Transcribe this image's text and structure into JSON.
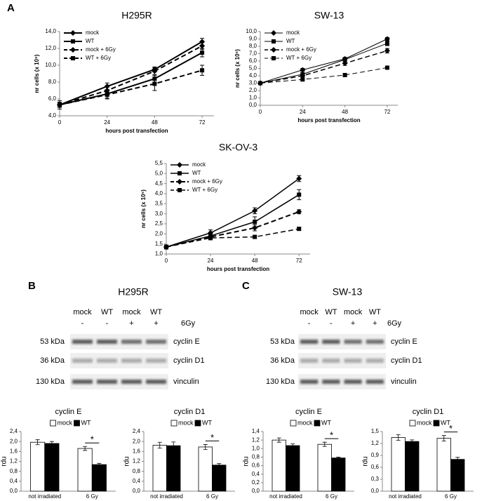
{
  "panel_labels": [
    "A",
    "B",
    "C"
  ],
  "chart_data": [
    {
      "type": "line",
      "title": "H295R",
      "xlabel": "hours post transfection",
      "ylabel": "nr cells (x 10⁵)",
      "x": [
        0,
        24,
        48,
        72
      ],
      "xlim": [
        0,
        78
      ],
      "xticks": [
        0,
        24,
        48,
        72
      ],
      "ylim": [
        4,
        14
      ],
      "yticks": [
        {
          "value": 4,
          "label": "4,0"
        },
        {
          "value": 6,
          "label": "6,0"
        },
        {
          "value": 8,
          "label": "8,0"
        },
        {
          "value": 10,
          "label": "10,0"
        },
        {
          "value": 12,
          "label": "12,0"
        },
        {
          "value": 14,
          "label": "14,0"
        }
      ],
      "series": [
        {
          "name": "mock",
          "color": "#000000",
          "marker": "diamond",
          "dash": false,
          "width": 2,
          "values": [
            5.3,
            7.5,
            9.5,
            12.8
          ],
          "errors": [
            0.3,
            0.4,
            0.3,
            0.4
          ]
        },
        {
          "name": "WT",
          "color": "#000000",
          "marker": "square",
          "dash": false,
          "width": 2,
          "values": [
            5.3,
            6.6,
            8.4,
            11.5
          ],
          "errors": [
            0.5,
            0.5,
            0.4,
            0.5
          ]
        },
        {
          "name": "mock + 6Gy",
          "color": "#000000",
          "marker": "diamond",
          "dash": true,
          "width": 2,
          "values": [
            5.3,
            7.0,
            9.3,
            12.3
          ],
          "errors": [
            0.3,
            0.4,
            0.4,
            0.4
          ]
        },
        {
          "name": "WT + 6Gy",
          "color": "#000000",
          "marker": "square",
          "dash": true,
          "width": 2,
          "values": [
            5.3,
            6.5,
            7.8,
            9.4
          ],
          "errors": [
            0.3,
            0.5,
            0.8,
            0.6
          ]
        }
      ]
    },
    {
      "type": "line",
      "title": "SW-13",
      "xlabel": "hours post transfection",
      "ylabel": "nr cells (x 10⁵)",
      "x": [
        0,
        24,
        48,
        72
      ],
      "xlim": [
        0,
        78
      ],
      "xticks": [
        0,
        24,
        48,
        72
      ],
      "ylim": [
        0,
        10
      ],
      "yticks": [
        {
          "value": 0,
          "label": "0,0"
        },
        {
          "value": 1,
          "label": "1,0"
        },
        {
          "value": 2,
          "label": "2,0"
        },
        {
          "value": 3,
          "label": "3,0"
        },
        {
          "value": 4,
          "label": "4,0"
        },
        {
          "value": 5,
          "label": "5,0"
        },
        {
          "value": 6,
          "label": "6,0"
        },
        {
          "value": 7,
          "label": "7,0"
        },
        {
          "value": 8,
          "label": "8,0"
        },
        {
          "value": 9,
          "label": "9,0"
        },
        {
          "value": 10,
          "label": "10,0"
        }
      ],
      "series": [
        {
          "name": "mock",
          "color": "#000000",
          "marker": "diamond",
          "dash": false,
          "width": 1,
          "values": [
            3.0,
            4.8,
            6.3,
            9.0
          ],
          "errors": [
            0.2,
            0.2,
            0.2,
            0.2
          ]
        },
        {
          "name": "WT",
          "color": "#000000",
          "marker": "square",
          "dash": false,
          "width": 1,
          "values": [
            3.0,
            4.2,
            6.2,
            8.4
          ],
          "errors": [
            0.2,
            0.2,
            0.2,
            0.3
          ]
        },
        {
          "name": "mock + 6Gy",
          "color": "#000000",
          "marker": "diamond",
          "dash": true,
          "width": 1.5,
          "values": [
            3.0,
            4.0,
            5.7,
            7.4
          ],
          "errors": [
            0.2,
            0.2,
            0.3,
            0.3
          ]
        },
        {
          "name": "WT + 6Gy",
          "color": "#000000",
          "marker": "square",
          "dash": true,
          "width": 1,
          "values": [
            3.0,
            3.5,
            4.1,
            5.1
          ],
          "errors": [
            0.2,
            0.1,
            0.2,
            0.1
          ]
        }
      ]
    },
    {
      "type": "line",
      "title": "SK-OV-3",
      "xlabel": "hours post transfection",
      "ylabel": "nr cells (x 10⁵)",
      "x": [
        0,
        24,
        48,
        72
      ],
      "xlim": [
        0,
        78
      ],
      "xticks": [
        0,
        24,
        48,
        72
      ],
      "ylim": [
        1,
        5.5
      ],
      "yticks": [
        {
          "value": 1,
          "label": "1,0"
        },
        {
          "value": 1.5,
          "label": "1,5"
        },
        {
          "value": 2,
          "label": "2,0"
        },
        {
          "value": 2.5,
          "label": "2,5"
        },
        {
          "value": 3,
          "label": "3,0"
        },
        {
          "value": 3.5,
          "label": "3,5"
        },
        {
          "value": 4,
          "label": "4,0"
        },
        {
          "value": 4.5,
          "label": "4,5"
        },
        {
          "value": 5,
          "label": "5,0"
        },
        {
          "value": 5.5,
          "label": "5,5"
        }
      ],
      "series": [
        {
          "name": "mock",
          "color": "#000000",
          "marker": "diamond",
          "dash": false,
          "width": 1.5,
          "values": [
            1.35,
            2.05,
            3.15,
            4.75
          ],
          "errors": [
            0.1,
            0.15,
            0.15,
            0.15
          ]
        },
        {
          "name": "WT",
          "color": "#000000",
          "marker": "square",
          "dash": false,
          "width": 1.5,
          "values": [
            1.35,
            1.9,
            2.6,
            3.95
          ],
          "errors": [
            0.1,
            0.15,
            0.25,
            0.25
          ]
        },
        {
          "name": "mock + 6Gy",
          "color": "#000000",
          "marker": "diamond",
          "dash": true,
          "width": 2,
          "values": [
            1.35,
            1.85,
            2.3,
            3.1
          ],
          "errors": [
            0.1,
            0.1,
            0.15,
            0.1
          ]
        },
        {
          "name": "WT + 6Gy",
          "color": "#000000",
          "marker": "square",
          "dash": true,
          "width": 1.5,
          "values": [
            1.35,
            1.8,
            1.85,
            2.25
          ],
          "errors": [
            0.1,
            0.1,
            0.08,
            0.08
          ]
        }
      ]
    },
    {
      "type": "bar",
      "title": "cyclin E",
      "ylabel": "rdu",
      "annotation": "*",
      "categories": [
        "not irradiated",
        "6 Gy"
      ],
      "ylim": [
        0,
        2.4
      ],
      "yticks": [
        {
          "value": 0,
          "label": "0,0"
        },
        {
          "value": 0.4,
          "label": "0,4"
        },
        {
          "value": 0.8,
          "label": "0,8"
        },
        {
          "value": 1.2,
          "label": "1,2"
        },
        {
          "value": 1.6,
          "label": "1,6"
        },
        {
          "value": 2.0,
          "label": "2,0"
        },
        {
          "value": 2.4,
          "label": "2,4"
        }
      ],
      "series": [
        {
          "name": "mock",
          "color": "#ffffff",
          "values": [
            1.97,
            1.72
          ],
          "errors": [
            0.1,
            0.08
          ]
        },
        {
          "name": "WT",
          "color": "#000000",
          "values": [
            1.92,
            1.07
          ],
          "errors": [
            0.08,
            0.05
          ]
        }
      ]
    },
    {
      "type": "bar",
      "title": "cyclin D1",
      "ylabel": "rdu",
      "annotation": "*",
      "categories": [
        "not irradiated",
        "6 Gy"
      ],
      "ylim": [
        0,
        2.4
      ],
      "yticks": [
        {
          "value": 0,
          "label": "0,0"
        },
        {
          "value": 0.4,
          "label": "0,4"
        },
        {
          "value": 0.8,
          "label": "0,8"
        },
        {
          "value": 1.2,
          "label": "1,2"
        },
        {
          "value": 1.6,
          "label": "1,6"
        },
        {
          "value": 2.0,
          "label": "2,0"
        },
        {
          "value": 2.4,
          "label": "2,4"
        }
      ],
      "series": [
        {
          "name": "mock",
          "color": "#ffffff",
          "values": [
            1.85,
            1.78
          ],
          "errors": [
            0.12,
            0.1
          ]
        },
        {
          "name": "WT",
          "color": "#000000",
          "values": [
            1.83,
            1.05
          ],
          "errors": [
            0.15,
            0.06
          ]
        }
      ]
    },
    {
      "type": "bar",
      "title": "cyclin E",
      "ylabel": "rdu",
      "annotation": "*",
      "categories": [
        "not irradiated",
        "6 Gy"
      ],
      "ylim": [
        0,
        1.4
      ],
      "yticks": [
        {
          "value": 0,
          "label": "0,0"
        },
        {
          "value": 0.2,
          "label": "0,2"
        },
        {
          "value": 0.4,
          "label": "0,4"
        },
        {
          "value": 0.6,
          "label": "0,6"
        },
        {
          "value": 0.8,
          "label": "0,8"
        },
        {
          "value": 1.0,
          "label": "1,0"
        },
        {
          "value": 1.2,
          "label": "1,2"
        },
        {
          "value": 1.4,
          "label": "1,4"
        }
      ],
      "series": [
        {
          "name": "mock",
          "color": "#ffffff",
          "values": [
            1.2,
            1.1
          ],
          "errors": [
            0.05,
            0.05
          ]
        },
        {
          "name": "WT",
          "color": "#000000",
          "values": [
            1.07,
            0.78
          ],
          "errors": [
            0.04,
            0.02
          ]
        }
      ]
    },
    {
      "type": "bar",
      "title": "cyclin D1",
      "ylabel": "rdu",
      "annotation": "*",
      "categories": [
        "not irradiated",
        "6 Gy"
      ],
      "ylim": [
        0,
        1.5
      ],
      "yticks": [
        {
          "value": 0,
          "label": "0,0"
        },
        {
          "value": 0.3,
          "label": "0,3"
        },
        {
          "value": 0.6,
          "label": "0,6"
        },
        {
          "value": 0.9,
          "label": "0,9"
        },
        {
          "value": 1.2,
          "label": "1,2"
        },
        {
          "value": 1.5,
          "label": "1,5"
        }
      ],
      "series": [
        {
          "name": "mock",
          "color": "#ffffff",
          "values": [
            1.35,
            1.33
          ],
          "errors": [
            0.07,
            0.07
          ]
        },
        {
          "name": "WT",
          "color": "#000000",
          "values": [
            1.25,
            0.8
          ],
          "errors": [
            0.04,
            0.05
          ]
        }
      ]
    }
  ],
  "blots": [
    {
      "title": "H295R",
      "treatment_label": "6Gy",
      "lanes": [
        "mock",
        "WT",
        "mock",
        "WT"
      ],
      "treatments": [
        "-",
        "-",
        "+",
        "+"
      ],
      "rows": [
        {
          "kda": "53 kDa",
          "protein": "cyclin E"
        },
        {
          "kda": "36 kDa",
          "protein": "cyclin D1"
        },
        {
          "kda": "130 kDa",
          "protein": "vinculin"
        }
      ]
    },
    {
      "title": "SW-13",
      "treatment_label": "6Gy",
      "lanes": [
        "mock",
        "WT",
        "mock",
        "WT"
      ],
      "treatments": [
        "-",
        "-",
        "+",
        "+"
      ],
      "rows": [
        {
          "kda": "53 kDa",
          "protein": "cyclin E"
        },
        {
          "kda": "36 kDa",
          "protein": "cyclin D1"
        },
        {
          "kda": "130 kDa",
          "protein": "vinculin"
        }
      ]
    }
  ]
}
